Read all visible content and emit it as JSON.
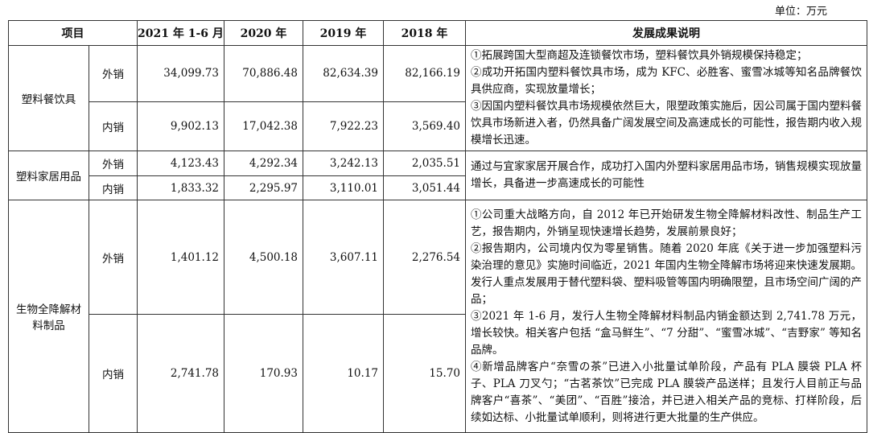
{
  "unit": "单位：万元",
  "headers": {
    "item": "项目",
    "y2021": "2021 年 1-6 月",
    "y2020": "2020 年",
    "y2019": "2019 年",
    "y2018": "2018 年",
    "desc": "发展成果说明"
  },
  "groups": [
    {
      "name": "塑料餐饮具",
      "rows": [
        {
          "channel": "外销",
          "v": [
            "34,099.73",
            "70,886.48",
            "82,634.39",
            "82,166.19"
          ]
        },
        {
          "channel": "内销",
          "v": [
            "9,902.13",
            "17,042.38",
            "7,922.23",
            "3,569.40"
          ]
        }
      ],
      "desc": [
        "①拓展跨国大型商超及连锁餐饮市场，塑料餐饮具外销规模保持稳定；",
        "②成功开拓国内塑料餐饮具市场，成为 KFC、必胜客、蜜雪冰城等知名品牌餐饮具供应商，实现放量增长；",
        "③因国内塑料餐饮具市场规模依然巨大，限塑政策实施后，因公司属于国内塑料餐饮具市场新进入者，仍然具备广阔发展空间及高速成长的可能性，报告期内收入规模增长迅速。"
      ]
    },
    {
      "name": "塑料家居用品",
      "rows": [
        {
          "channel": "外销",
          "v": [
            "4,123.43",
            "4,292.34",
            "3,242.13",
            "2,035.51"
          ]
        },
        {
          "channel": "内销",
          "v": [
            "1,833.32",
            "2,295.97",
            "3,110.01",
            "3,051.44"
          ]
        }
      ],
      "desc": [
        "通过与宜家家居开展合作，成功打入国内外塑料家居用品市场，销售规模实现放量增长，具备进一步高速成长的可能性"
      ]
    },
    {
      "name": "生物全降解材料制品",
      "rows": [
        {
          "channel": "外销",
          "v": [
            "1,401.12",
            "4,500.18",
            "3,607.11",
            "2,276.54"
          ]
        },
        {
          "channel": "内销",
          "v": [
            "2,741.78",
            "170.93",
            "10.17",
            "15.70"
          ]
        }
      ],
      "desc": [
        "①公司重大战略方向，自 2012 年已开始研发生物全降解材料改性、制品生产工艺，报告期内，外销呈现快速增长趋势，发展前景良好；",
        "②报告期内，公司境内仅为零星销售。随着 2020 年底《关于进一步加强塑料污染治理的意见》实施时间临近，2021 年国内生物全降解市场将迎来快速发展期。发行人重点发展用于替代塑料袋、塑料吸管等国内明确限塑，且市场空间广阔的产品；",
        "③2021 年 1-6 月，发行人生物全降解材料制品内销金额达到 2,741.78 万元，增长较快。相关客户包括 “盒马鲜生”、“7 分甜”、“蜜雪冰城”、“吉野家” 等知名品牌。",
        "④新增品牌客户“奈雪の茶”已进入小批量试单阶段，产品有 PLA 膜袋 PLA 杯子、PLA 刀叉勺；“古茗茶饮”已完成 PLA 膜袋产品送样；且发行人目前正与品牌客户“喜茶”、“美团”、“百胜”接洽，并已进入相关产品的竞标、打样阶段，后续如达标、小批量试单顺利，则将进行更大批量的生产供应。"
      ]
    }
  ]
}
